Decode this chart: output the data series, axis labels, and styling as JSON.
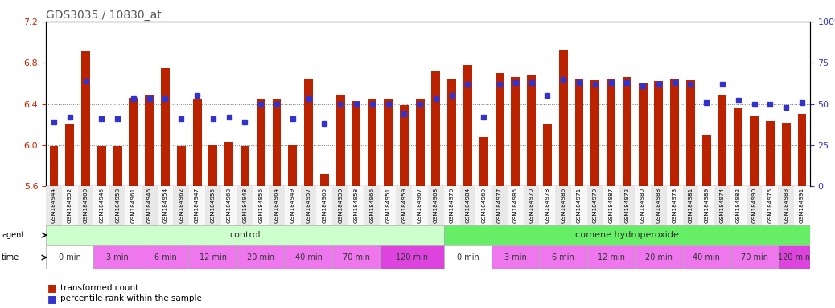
{
  "title": "GDS3035 / 10830_at",
  "samples": [
    "GSM184944",
    "GSM184952",
    "GSM184960",
    "GSM184945",
    "GSM184953",
    "GSM184961",
    "GSM184946",
    "GSM184954",
    "GSM184962",
    "GSM184947",
    "GSM184955",
    "GSM184963",
    "GSM184948",
    "GSM184956",
    "GSM184964",
    "GSM184949",
    "GSM184957",
    "GSM184965",
    "GSM184950",
    "GSM184958",
    "GSM184966",
    "GSM184951",
    "GSM184959",
    "GSM184967",
    "GSM184968",
    "GSM184976",
    "GSM184984",
    "GSM184969",
    "GSM184977",
    "GSM184985",
    "GSM184970",
    "GSM184978",
    "GSM184986",
    "GSM184971",
    "GSM184979",
    "GSM184987",
    "GSM184972",
    "GSM184980",
    "GSM184988",
    "GSM184973",
    "GSM184981",
    "GSM184989",
    "GSM184974",
    "GSM184982",
    "GSM184990",
    "GSM184975",
    "GSM184983",
    "GSM184991"
  ],
  "bar_values": [
    5.99,
    6.2,
    6.92,
    5.99,
    5.99,
    6.46,
    6.48,
    6.75,
    5.99,
    6.44,
    6.0,
    6.03,
    5.99,
    6.44,
    6.44,
    6.0,
    6.65,
    5.72,
    6.48,
    6.43,
    6.44,
    6.45,
    6.39,
    6.44,
    6.72,
    6.64,
    6.78,
    6.08,
    6.7,
    6.66,
    6.68,
    6.2,
    6.93,
    6.65,
    6.63,
    6.64,
    6.66,
    6.61,
    6.62,
    6.65,
    6.63,
    6.1,
    6.48,
    6.36,
    6.28,
    6.23,
    6.22,
    6.3
  ],
  "percentile_values": [
    39,
    42,
    64,
    41,
    41,
    53,
    53,
    53,
    41,
    55,
    41,
    42,
    39,
    50,
    50,
    41,
    53,
    38,
    50,
    50,
    50,
    50,
    44,
    50,
    53,
    55,
    62,
    42,
    62,
    63,
    63,
    55,
    65,
    63,
    62,
    63,
    63,
    61,
    62,
    63,
    62,
    51,
    62,
    52,
    50,
    50,
    48,
    51
  ],
  "ylim_left": [
    5.6,
    7.2
  ],
  "ylim_right": [
    0,
    100
  ],
  "bar_color": "#BB2200",
  "dot_color": "#3333CC",
  "title_color": "#555555",
  "ytick_color_left": "#CC2200",
  "ytick_color_right": "#3333CC",
  "grid_color": "#777777",
  "agent_groups": [
    {
      "label": "control",
      "start": 0,
      "end": 25,
      "color": "#CCFFCC"
    },
    {
      "label": "cumene hydroperoxide",
      "start": 25,
      "end": 48,
      "color": "#66EE66"
    }
  ],
  "time_groups_control": [
    {
      "label": "0 min",
      "start": 0,
      "end": 3
    },
    {
      "label": "3 min",
      "start": 3,
      "end": 6
    },
    {
      "label": "6 min",
      "start": 6,
      "end": 9
    },
    {
      "label": "12 min",
      "start": 9,
      "end": 12
    },
    {
      "label": "20 min",
      "start": 12,
      "end": 15
    },
    {
      "label": "40 min",
      "start": 15,
      "end": 18
    },
    {
      "label": "70 min",
      "start": 18,
      "end": 21
    },
    {
      "label": "120 min",
      "start": 21,
      "end": 25
    }
  ],
  "time_groups_treatment": [
    {
      "label": "0 min",
      "start": 25,
      "end": 28
    },
    {
      "label": "3 min",
      "start": 28,
      "end": 31
    },
    {
      "label": "6 min",
      "start": 31,
      "end": 34
    },
    {
      "label": "12 min",
      "start": 34,
      "end": 37
    },
    {
      "label": "20 min",
      "start": 37,
      "end": 40
    },
    {
      "label": "40 min",
      "start": 40,
      "end": 43
    },
    {
      "label": "70 min",
      "start": 43,
      "end": 46
    },
    {
      "label": "120 min",
      "start": 46,
      "end": 48
    }
  ],
  "time_color_white": "#FFFFFF",
  "time_color_pink": "#EE77EE",
  "time_color_magenta": "#DD44DD"
}
